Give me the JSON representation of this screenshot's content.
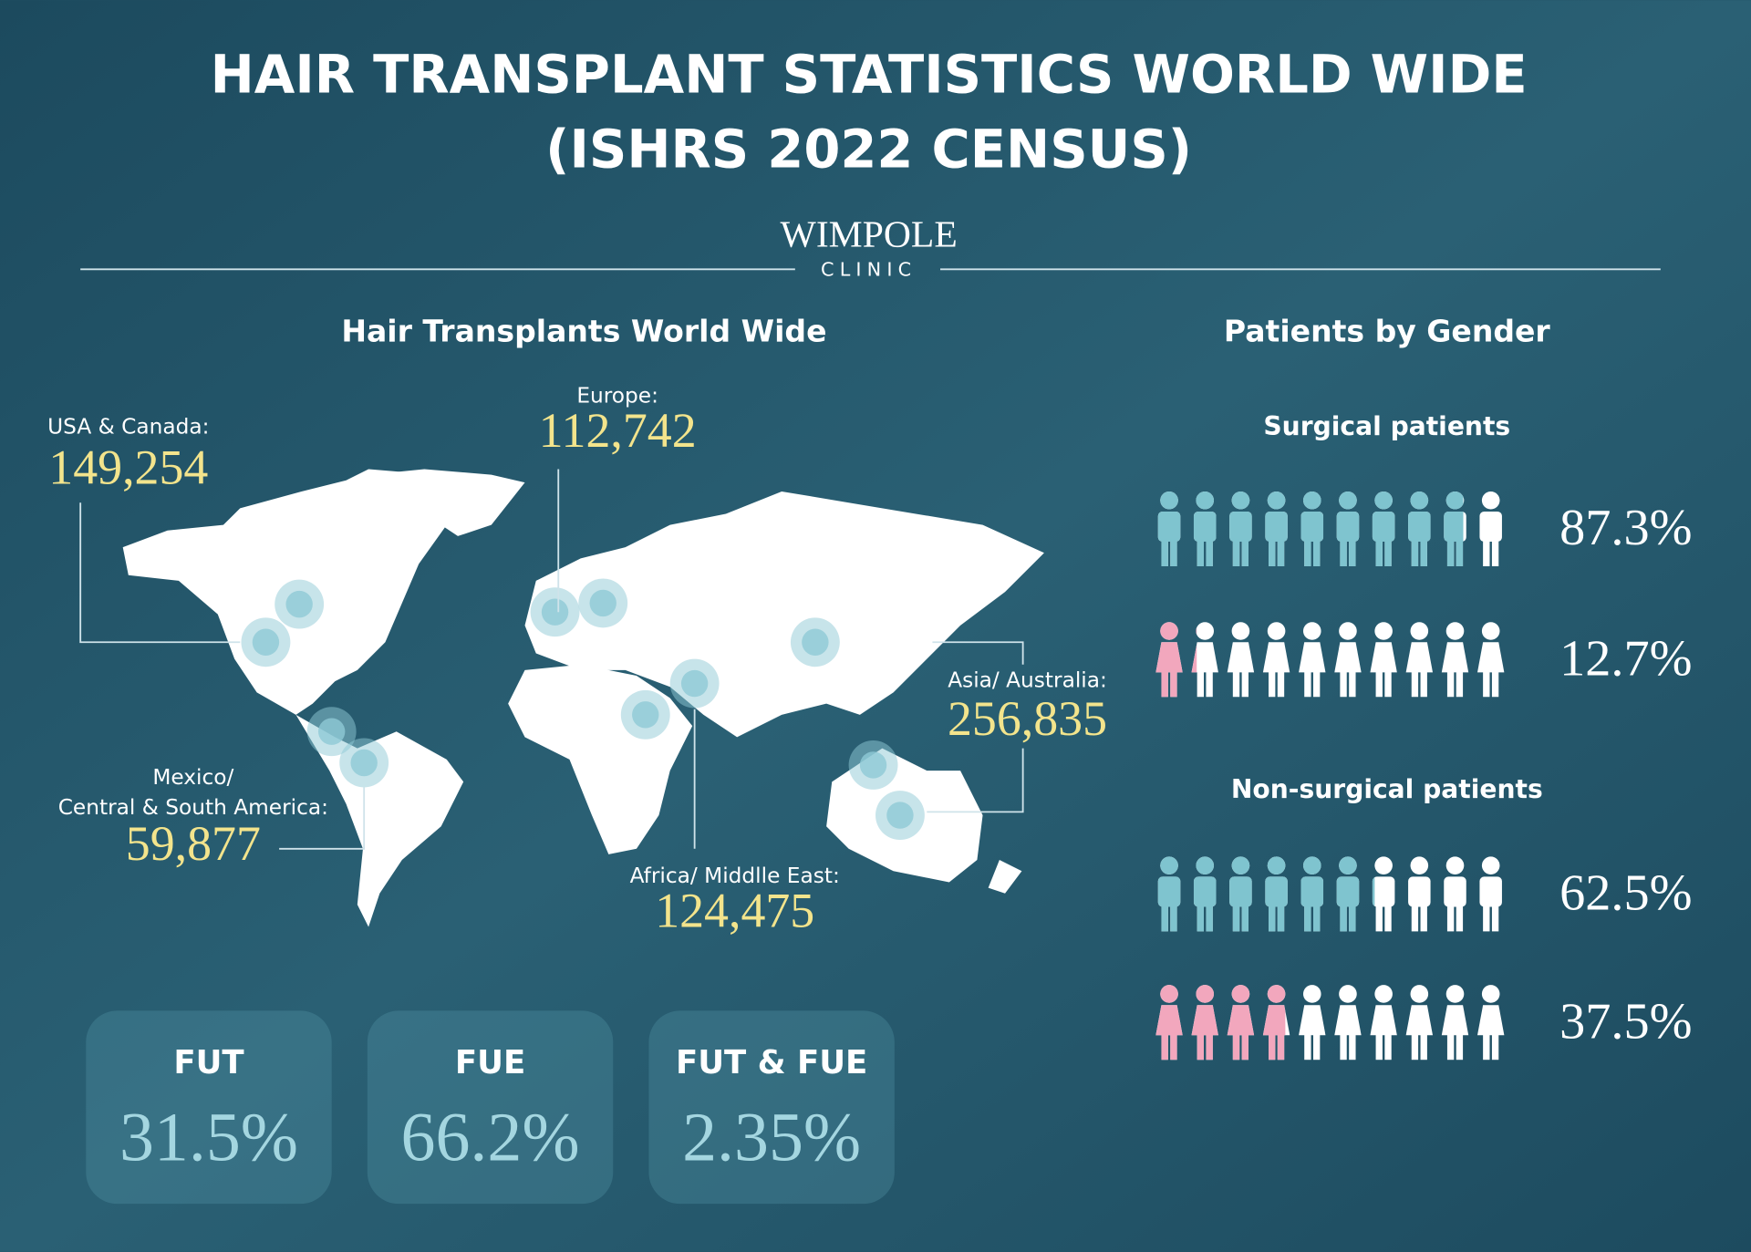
{
  "header": {
    "title": [
      "HAIR TRANSPLANT STATISTICS WORLD WIDE",
      "(ISHRS 2022 CENSUS)"
    ],
    "logo": "WIMPOLE",
    "logo_sub": "CLINIC"
  },
  "map": {
    "title": "Hair Transplants World Wide",
    "regions": [
      {
        "name": [
          "USA & Canada:"
        ],
        "count": "149,254"
      },
      {
        "name": [
          "Europe:"
        ],
        "count": "112,742"
      },
      {
        "name": [
          "Asia/ Australia:"
        ],
        "count": "256,835"
      },
      {
        "name": [
          "Mexico/",
          "Central & South America:"
        ],
        "count": "59,877"
      },
      {
        "name": [
          "Africa/ Middlle East:"
        ],
        "count": "124,475"
      }
    ]
  },
  "methods": [
    {
      "name": "FUT",
      "share": "31.5%"
    },
    {
      "name": "FUE",
      "share": "66.2%"
    },
    {
      "name": "FUT & FUE",
      "share": "2.35%"
    }
  ],
  "gender": {
    "title": "Patients by Gender",
    "male_color": "#7fc4cf",
    "female_color": "#f2a7bd",
    "groups": [
      {
        "name": "Surgical patients",
        "male": {
          "value": 87.3,
          "label": "87.3%"
        },
        "female": {
          "value": 12.7,
          "label": "12.7%"
        }
      },
      {
        "name": "Non-surgical patients",
        "male": {
          "value": 62.5,
          "label": "62.5%"
        },
        "female": {
          "value": 37.5,
          "label": "37.5%"
        }
      }
    ]
  }
}
